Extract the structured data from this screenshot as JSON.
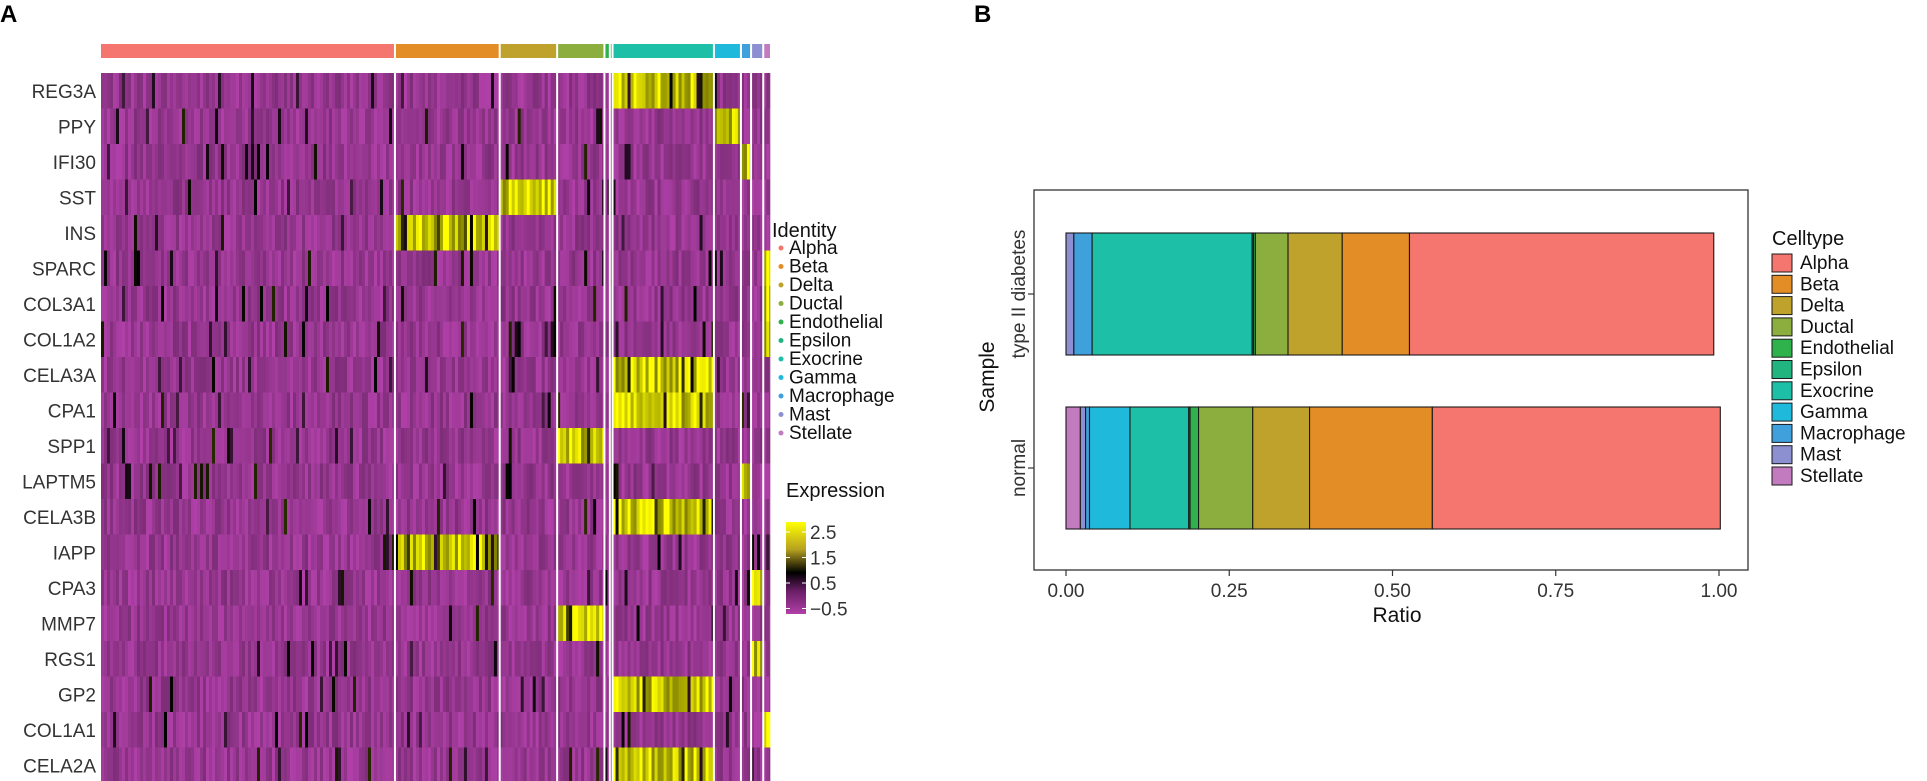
{
  "panels": {
    "a": "A",
    "b": "B"
  },
  "heatmap_colors": {
    "low": "#b040a8",
    "mid": "#000000",
    "high": "#ffff00"
  },
  "cell_types": [
    {
      "name": "Alpha",
      "color": "#F4766E"
    },
    {
      "name": "Beta",
      "color": "#E38D26"
    },
    {
      "name": "Delta",
      "color": "#BFA22B"
    },
    {
      "name": "Ductal",
      "color": "#8BAE3F"
    },
    {
      "name": "Endothelial",
      "color": "#2FB24C"
    },
    {
      "name": "Epsilon",
      "color": "#22B47E"
    },
    {
      "name": "Exocrine",
      "color": "#1DBFA7"
    },
    {
      "name": "Gamma",
      "color": "#1FBADB"
    },
    {
      "name": "Macrophage",
      "color": "#3FA0DC"
    },
    {
      "name": "Mast",
      "color": "#8C8FD0"
    },
    {
      "name": "Stellate",
      "color": "#C27BBE"
    }
  ],
  "chart_data": [
    {
      "type": "heatmap",
      "panel": "A",
      "rows": [
        "REG3A",
        "PPY",
        "IFI30",
        "SST",
        "INS",
        "SPARC",
        "COL3A1",
        "COL1A2",
        "CELA3A",
        "CPA1",
        "SPP1",
        "LAPTM5",
        "CELA3B",
        "IAPP",
        "CPA3",
        "MMP7",
        "RGS1",
        "GP2",
        "COL1A1",
        "CELA2A"
      ],
      "column_groups": [
        {
          "name": "Alpha",
          "fraction": 0.435
        },
        {
          "name": "Beta",
          "fraction": 0.155
        },
        {
          "name": "Delta",
          "fraction": 0.085
        },
        {
          "name": "Ductal",
          "fraction": 0.07
        },
        {
          "name": "Endothelial",
          "fraction": 0.008
        },
        {
          "name": "Epsilon",
          "fraction": 0.004
        },
        {
          "name": "Exocrine",
          "fraction": 0.15
        },
        {
          "name": "Gamma",
          "fraction": 0.04
        },
        {
          "name": "Macrophage",
          "fraction": 0.015
        },
        {
          "name": "Mast",
          "fraction": 0.018
        },
        {
          "name": "Stellate",
          "fraction": 0.01
        }
      ],
      "row_high_group": {
        "REG3A": "Exocrine",
        "PPY": "Gamma",
        "IFI30": "Macrophage",
        "SST": "Delta",
        "INS": "Beta",
        "SPARC": "Stellate",
        "COL3A1": "Stellate",
        "COL1A2": "Stellate",
        "CELA3A": "Exocrine",
        "CPA1": "Exocrine",
        "SPP1": "Ductal",
        "LAPTM5": "Macrophage",
        "CELA3B": "Exocrine",
        "IAPP": "Beta",
        "CPA3": "Mast",
        "MMP7": "Ductal",
        "RGS1": "Mast",
        "GP2": "Exocrine",
        "COL1A1": "Stellate",
        "CELA2A": "Exocrine"
      },
      "identity_legend_title": "Identity",
      "expression_legend": {
        "title": "Expression",
        "ticks": [
          "2.5",
          "1.5",
          "0.5",
          "−0.5"
        ],
        "range": [
          -0.5,
          2.5
        ]
      }
    },
    {
      "type": "bar",
      "panel": "B",
      "orientation": "horizontal",
      "stacked": true,
      "xlabel": "Ratio",
      "ylabel": "Sample",
      "xlim": [
        0,
        1
      ],
      "xticks": [
        "0.00",
        "0.25",
        "0.50",
        "0.75",
        "1.00"
      ],
      "categories": [
        "type II diabetes",
        "normal"
      ],
      "legend_title": "Celltype",
      "series": [
        {
          "name": "Stellate",
          "values": [
            0.0,
            0.022
          ]
        },
        {
          "name": "Mast",
          "values": [
            0.012,
            0.008
          ]
        },
        {
          "name": "Macrophage",
          "values": [
            0.028,
            0.006
          ]
        },
        {
          "name": "Gamma",
          "values": [
            0.0,
            0.062
          ]
        },
        {
          "name": "Exocrine",
          "values": [
            0.245,
            0.09
          ]
        },
        {
          "name": "Epsilon",
          "values": [
            0.002,
            0.002
          ]
        },
        {
          "name": "Endothelial",
          "values": [
            0.003,
            0.013
          ]
        },
        {
          "name": "Ductal",
          "values": [
            0.05,
            0.083
          ]
        },
        {
          "name": "Delta",
          "values": [
            0.083,
            0.087
          ]
        },
        {
          "name": "Beta",
          "values": [
            0.103,
            0.188
          ]
        },
        {
          "name": "Alpha",
          "values": [
            0.466,
            0.441
          ]
        }
      ]
    }
  ]
}
